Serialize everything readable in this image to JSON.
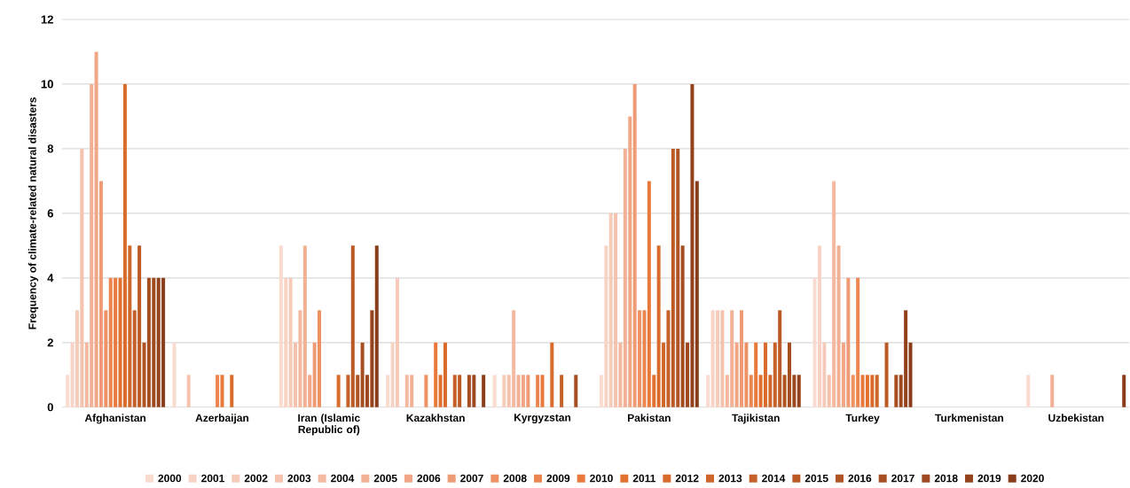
{
  "chart_data": {
    "type": "bar",
    "ylabel": "Frequency of climate-related natural disasters",
    "categories": [
      "Afghanistan",
      "Azerbaijan",
      "Iran (Islamic Republic of)",
      "Kazakhstan",
      "Kyrgyzstan",
      "Pakistan",
      "Tajikistan",
      "Turkey",
      "Turkmenistan",
      "Uzbekistan"
    ],
    "series": [
      {
        "name": "2000",
        "color": "#fadbd0",
        "values": [
          1,
          2,
          5,
          1,
          1,
          1,
          1,
          4,
          0,
          1
        ]
      },
      {
        "name": "2001",
        "color": "#f8d3c5",
        "values": [
          2,
          0,
          4,
          2,
          0,
          5,
          3,
          5,
          0,
          0
        ]
      },
      {
        "name": "2002",
        "color": "#f7cbb9",
        "values": [
          3,
          0,
          4,
          4,
          1,
          6,
          3,
          2,
          0,
          0
        ]
      },
      {
        "name": "2003",
        "color": "#f5c2ad",
        "values": [
          8,
          1,
          2,
          0,
          1,
          6,
          3,
          1,
          0,
          0
        ]
      },
      {
        "name": "2004",
        "color": "#f4b9a0",
        "values": [
          2,
          0,
          3,
          1,
          3,
          2,
          1,
          7,
          0,
          0
        ]
      },
      {
        "name": "2005",
        "color": "#f2b094",
        "values": [
          10,
          0,
          5,
          1,
          1,
          8,
          3,
          5,
          0,
          1
        ]
      },
      {
        "name": "2006",
        "color": "#f1a686",
        "values": [
          11,
          0,
          1,
          0,
          1,
          9,
          2,
          2,
          0,
          0
        ]
      },
      {
        "name": "2007",
        "color": "#ef9c76",
        "values": [
          7,
          0,
          2,
          0,
          1,
          10,
          3,
          4,
          0,
          0
        ]
      },
      {
        "name": "2008",
        "color": "#ee9163",
        "values": [
          3,
          0,
          3,
          1,
          0,
          3,
          2,
          1,
          0,
          0
        ]
      },
      {
        "name": "2009",
        "color": "#ec8550",
        "values": [
          4,
          1,
          0,
          0,
          1,
          3,
          1,
          4,
          0,
          0
        ]
      },
      {
        "name": "2010",
        "color": "#e9793a",
        "values": [
          4,
          1,
          0,
          2,
          1,
          7,
          2,
          1,
          0,
          0
        ]
      },
      {
        "name": "2011",
        "color": "#e2712f",
        "values": [
          4,
          0,
          0,
          1,
          0,
          1,
          1,
          1,
          0,
          0
        ]
      },
      {
        "name": "2012",
        "color": "#d96c2c",
        "values": [
          10,
          1,
          1,
          2,
          2,
          5,
          2,
          1,
          0,
          0
        ]
      },
      {
        "name": "2013",
        "color": "#cf662a",
        "values": [
          5,
          0,
          0,
          0,
          0,
          2,
          1,
          1,
          0,
          0
        ]
      },
      {
        "name": "2014",
        "color": "#c56028",
        "values": [
          3,
          0,
          1,
          1,
          1,
          3,
          2,
          0,
          0,
          0
        ]
      },
      {
        "name": "2015",
        "color": "#bb5a25",
        "values": [
          5,
          0,
          5,
          1,
          0,
          8,
          3,
          2,
          0,
          0
        ]
      },
      {
        "name": "2016",
        "color": "#b15423",
        "values": [
          2,
          0,
          1,
          0,
          0,
          8,
          1,
          0,
          0,
          0
        ]
      },
      {
        "name": "2017",
        "color": "#a74e21",
        "values": [
          4,
          0,
          2,
          1,
          1,
          5,
          2,
          1,
          0,
          0
        ]
      },
      {
        "name": "2018",
        "color": "#9d481e",
        "values": [
          4,
          0,
          1,
          1,
          0,
          2,
          1,
          1,
          0,
          0
        ]
      },
      {
        "name": "2019",
        "color": "#93421c",
        "values": [
          4,
          0,
          3,
          0,
          0,
          10,
          1,
          3,
          0,
          0
        ]
      },
      {
        "name": "2020",
        "color": "#8a3d1a",
        "values": [
          4,
          0,
          5,
          1,
          0,
          7,
          0,
          2,
          0,
          1
        ]
      }
    ],
    "ylim": [
      0,
      12
    ],
    "yticks": [
      0,
      2,
      4,
      6,
      8,
      10,
      12
    ],
    "grid": "y",
    "legend": "bottom"
  }
}
